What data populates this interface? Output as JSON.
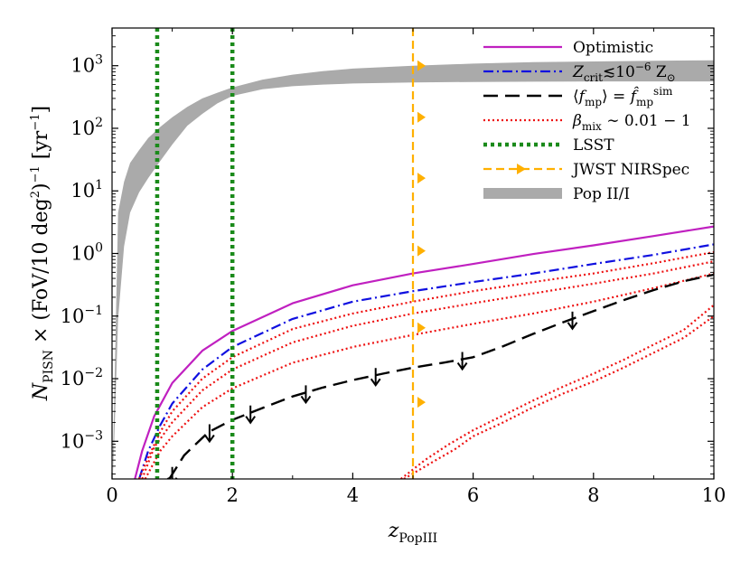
{
  "chart_data": {
    "type": "line",
    "xlabel": "z_PopIII",
    "xlabel_main": "z",
    "xlabel_sub": "PopIII",
    "ylabel": "Ṅ_PISN × (FoV/10 deg²)⁻¹ [yr⁻¹]",
    "ylabel_n": "N",
    "ylabel_sub": "PISN",
    "ylabel_mid": " × (FoV/10 deg",
    "ylabel_sup1": "2",
    "ylabel_mid2": ")",
    "ylabel_sup2": "−1",
    "ylabel_end1": " [yr",
    "ylabel_sup3": "−1",
    "ylabel_end2": "]",
    "xscale": "linear",
    "yscale": "log",
    "xlim": [
      0,
      10
    ],
    "ylim": [
      0.00025,
      4000
    ],
    "x_ticks": [
      0,
      2,
      4,
      6,
      8,
      10
    ],
    "x_tick_labels": [
      "0",
      "2",
      "4",
      "6",
      "8",
      "10"
    ],
    "y_ticks": [
      {
        "value": 0.001,
        "base": "10",
        "exp": "−3"
      },
      {
        "value": 0.01,
        "base": "10",
        "exp": "−2"
      },
      {
        "value": 0.1,
        "base": "10",
        "exp": "−1"
      },
      {
        "value": 1,
        "base": "10",
        "exp": "0"
      },
      {
        "value": 10,
        "base": "10",
        "exp": "1"
      },
      {
        "value": 100,
        "base": "10",
        "exp": "2"
      },
      {
        "value": 1000,
        "base": "10",
        "exp": "3"
      }
    ],
    "legend": {
      "placement": "top-right",
      "entries": [
        {
          "id": "optimistic",
          "style": "solid-magenta",
          "parts": [
            {
              "t": "Optimistic",
              "k": "n"
            }
          ]
        },
        {
          "id": "zcrit",
          "style": "dashdot-blue",
          "parts": [
            {
              "t": "Z",
              "k": "i"
            },
            {
              "t": "crit",
              "k": "sub"
            },
            {
              "t": "≲10",
              "k": "n"
            },
            {
              "t": "−6",
              "k": "sup"
            },
            {
              "t": " Z",
              "k": "n"
            },
            {
              "t": "⊙",
              "k": "sub"
            }
          ]
        },
        {
          "id": "fmp",
          "style": "longdash-black",
          "parts": [
            {
              "t": "⟨",
              "k": "n"
            },
            {
              "t": "f",
              "k": "i"
            },
            {
              "t": "mp",
              "k": "sub"
            },
            {
              "t": "⟩ = ",
              "k": "n"
            },
            {
              "t": "f̂",
              "k": "i"
            },
            {
              "t": "mp",
              "k": "sub"
            },
            {
              "t": "sim",
              "k": "sup"
            }
          ]
        },
        {
          "id": "betamix",
          "style": "dotted-red",
          "parts": [
            {
              "t": "β",
              "k": "i"
            },
            {
              "t": "mix",
              "k": "sub"
            },
            {
              "t": " ∼ 0.01 − 1",
              "k": "n"
            }
          ]
        },
        {
          "id": "lsst",
          "style": "dotted-green",
          "parts": [
            {
              "t": "LSST",
              "k": "n"
            }
          ]
        },
        {
          "id": "jwst",
          "style": "dashed-orange-arrow",
          "parts": [
            {
              "t": "JWST NIRSpec",
              "k": "n"
            }
          ]
        },
        {
          "id": "popii",
          "style": "grey-band",
          "parts": [
            {
              "t": "Pop II/I",
              "k": "n"
            }
          ]
        }
      ]
    },
    "vertical_lines": [
      {
        "name": "LSST",
        "x": 0.75,
        "color": "#1a8a1a",
        "style": "dotted"
      },
      {
        "name": "LSST",
        "x": 2.0,
        "color": "#1a8a1a",
        "style": "dotted"
      },
      {
        "name": "JWST NIRSpec",
        "x": 5.0,
        "color": "#ffb000",
        "style": "dashed",
        "arrow_y": [
          1000,
          150,
          16,
          1.1,
          0.065,
          0.0042
        ]
      }
    ],
    "band": {
      "name": "Pop II/I",
      "color": "#aaaaaa",
      "x": [
        0.02,
        0.1,
        0.2,
        0.3,
        0.45,
        0.6,
        0.8,
        1.0,
        1.25,
        1.5,
        1.75,
        2.0,
        2.5,
        3.0,
        3.5,
        4.0,
        5.0,
        6.0,
        7.0,
        8.0,
        9.0,
        10.0
      ],
      "lower": [
        0.0003,
        0.09,
        1.3,
        4.5,
        9.5,
        16,
        30,
        55,
        110,
        170,
        250,
        330,
        420,
        470,
        500,
        520,
        540,
        550,
        555,
        560,
        560,
        560
      ],
      "upper": [
        0.0008,
        4.5,
        14,
        28,
        45,
        70,
        105,
        150,
        220,
        300,
        370,
        450,
        600,
        720,
        820,
        900,
        1000,
        1080,
        1140,
        1170,
        1200,
        1220
      ]
    },
    "series": [
      {
        "name": "Optimistic",
        "color": "#c020c0",
        "style": "solid",
        "x": [
          0.38,
          0.5,
          0.7,
          1.0,
          1.5,
          2.0,
          3.0,
          4.0,
          5.0,
          6.0,
          7.0,
          8.0,
          9.0,
          10.0
        ],
        "y": [
          0.00025,
          0.0007,
          0.0025,
          0.0085,
          0.028,
          0.058,
          0.16,
          0.31,
          0.48,
          0.68,
          0.98,
          1.35,
          1.9,
          2.7
        ]
      },
      {
        "name": "Zcrit",
        "color": "#1010e0",
        "style": "dashdot",
        "x": [
          0.45,
          0.6,
          0.8,
          1.0,
          1.5,
          2.0,
          3.0,
          4.0,
          5.0,
          6.0,
          7.0,
          8.0,
          9.0,
          10.0
        ],
        "y": [
          0.00025,
          0.0007,
          0.0018,
          0.004,
          0.014,
          0.032,
          0.09,
          0.17,
          0.25,
          0.35,
          0.48,
          0.68,
          0.95,
          1.4
        ]
      },
      {
        "name": "beta_mix_1",
        "color": "#ee1111",
        "style": "dotted",
        "x": [
          0.45,
          0.6,
          0.8,
          1.0,
          1.5,
          2.0,
          3.0,
          4.0,
          5.0,
          6.0,
          7.0,
          8.0,
          9.0,
          10.0
        ],
        "y": [
          0.00025,
          0.00055,
          0.0014,
          0.003,
          0.01,
          0.022,
          0.062,
          0.11,
          0.17,
          0.25,
          0.35,
          0.48,
          0.7,
          1.05
        ]
      },
      {
        "name": "beta_mix_2",
        "color": "#ee1111",
        "style": "dotted",
        "x": [
          0.5,
          0.7,
          1.0,
          1.5,
          2.0,
          3.0,
          4.0,
          5.0,
          6.0,
          7.0,
          8.0,
          9.0,
          10.0
        ],
        "y": [
          0.00025,
          0.0008,
          0.002,
          0.0065,
          0.014,
          0.038,
          0.07,
          0.11,
          0.16,
          0.23,
          0.33,
          0.48,
          0.75
        ]
      },
      {
        "name": "beta_mix_3",
        "color": "#ee1111",
        "style": "dotted",
        "x": [
          0.55,
          0.8,
          1.0,
          1.5,
          2.0,
          3.0,
          4.0,
          5.0,
          6.0,
          7.0,
          8.0,
          9.0,
          10.0
        ],
        "y": [
          0.00025,
          0.0007,
          0.0012,
          0.0035,
          0.007,
          0.018,
          0.032,
          0.05,
          0.075,
          0.11,
          0.17,
          0.28,
          0.48
        ]
      },
      {
        "name": "beta_mix_4",
        "color": "#ee1111",
        "style": "dotted",
        "x": [
          4.8,
          5.2,
          5.6,
          6.0,
          6.5,
          7.0,
          7.5,
          8.0,
          8.5,
          9.0,
          9.5,
          10.0
        ],
        "y": [
          0.00025,
          0.0005,
          0.0009,
          0.0015,
          0.0026,
          0.0045,
          0.0075,
          0.012,
          0.02,
          0.035,
          0.06,
          0.15
        ]
      },
      {
        "name": "beta_mix_5",
        "color": "#ee1111",
        "style": "dotted",
        "x": [
          4.85,
          5.3,
          5.7,
          6.0,
          6.5,
          7.0,
          7.5,
          8.0,
          8.5,
          9.0,
          9.5,
          10.0
        ],
        "y": [
          0.00025,
          0.00045,
          0.00075,
          0.0012,
          0.002,
          0.0035,
          0.0058,
          0.009,
          0.015,
          0.026,
          0.045,
          0.1
        ]
      },
      {
        "name": "fmp_upper_limit",
        "color": "#000000",
        "style": "longdash",
        "x": [
          0.95,
          1.2,
          1.6,
          2.0,
          2.5,
          3.0,
          3.5,
          4.0,
          4.5,
          5.0,
          5.5,
          6.0,
          6.5,
          7.0,
          7.5,
          8.0,
          8.5,
          9.0,
          9.5,
          10.0
        ],
        "y": [
          0.00025,
          0.0006,
          0.0014,
          0.0022,
          0.0034,
          0.0052,
          0.0072,
          0.0095,
          0.012,
          0.015,
          0.018,
          0.022,
          0.033,
          0.052,
          0.08,
          0.12,
          0.18,
          0.26,
          0.36,
          0.46
        ],
        "arrows_x": [
          1.0,
          1.62,
          2.3,
          3.22,
          4.38,
          5.82,
          7.65
        ]
      }
    ]
  }
}
